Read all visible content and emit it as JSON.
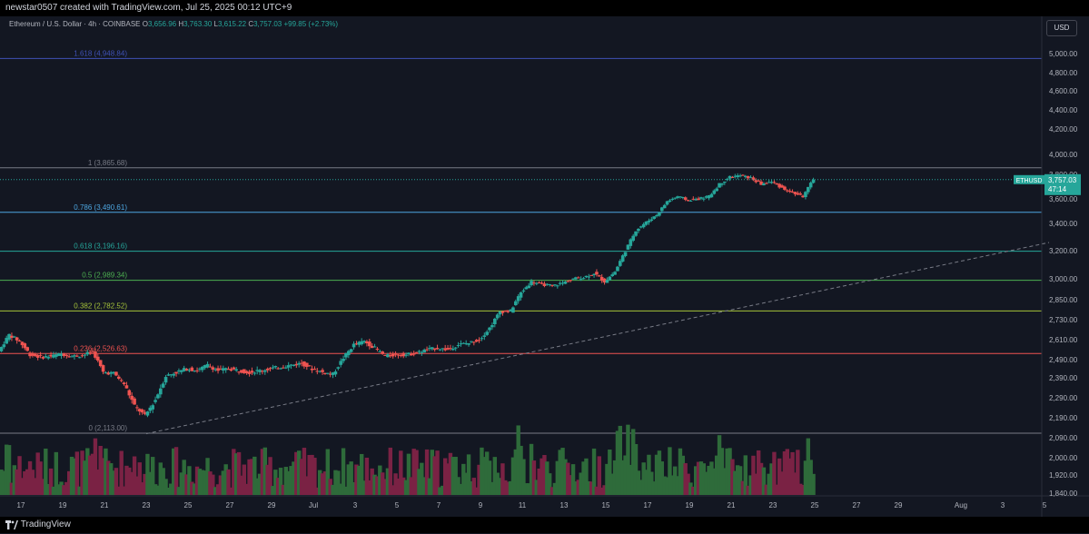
{
  "header": {
    "credit": "newstar0507 created with TradingView.com, Jul 25, 2025 00:12 UTC+9"
  },
  "legend": {
    "symbol": "Ethereum / U.S. Dollar · 4h · COINBASE",
    "o_label": "O",
    "o": "3,656.96",
    "h_label": "H",
    "h": "3,763.30",
    "l_label": "L",
    "l": "3,615.22",
    "c_label": "C",
    "c": "3,757.03",
    "change": "+99.85 (+2.73%)"
  },
  "currency_button": "USD",
  "footer": {
    "brand": "TradingView"
  },
  "colors": {
    "up": "#26a69a",
    "down": "#ef5350",
    "vol_up": "#2e6b3a",
    "vol_down": "#7a2244",
    "bg": "#131722",
    "axis_text": "#b2b5be"
  },
  "price_tag": {
    "symbol": "ETHUSD",
    "price": "3,757.03",
    "countdown": "47:14"
  },
  "chart_data": {
    "type": "candlestick",
    "title": "Ethereum / U.S. Dollar · 4h · COINBASE",
    "ylim": [
      1840,
      5140
    ],
    "y_ticks": [
      {
        "v": 5000,
        "label": "5,000.00"
      },
      {
        "v": 4800,
        "label": "4,800.00"
      },
      {
        "v": 4600,
        "label": "4,600.00"
      },
      {
        "v": 4400,
        "label": "4,400.00"
      },
      {
        "v": 4200,
        "label": "4,200.00"
      },
      {
        "v": 4000,
        "label": "4,000.00"
      },
      {
        "v": 3800,
        "label": "3,800.00"
      },
      {
        "v": 3600,
        "label": "3,600.00"
      },
      {
        "v": 3400,
        "label": "3,400.00"
      },
      {
        "v": 3200,
        "label": "3,200.00"
      },
      {
        "v": 3000,
        "label": "3,000.00"
      },
      {
        "v": 2850,
        "label": "2,850.00"
      },
      {
        "v": 2730,
        "label": "2,730.00"
      },
      {
        "v": 2610,
        "label": "2,610.00"
      },
      {
        "v": 2490,
        "label": "2,490.00"
      },
      {
        "v": 2390,
        "label": "2,390.00"
      },
      {
        "v": 2290,
        "label": "2,290.00"
      },
      {
        "v": 2190,
        "label": "2,190.00"
      },
      {
        "v": 2090,
        "label": "2,090.00"
      },
      {
        "v": 2000,
        "label": "2,000.00"
      },
      {
        "v": 1920,
        "label": "1,920.00"
      },
      {
        "v": 1840,
        "label": "1,840.00"
      }
    ],
    "x_ticks": [
      {
        "d": "Jun 17",
        "label": "17"
      },
      {
        "d": "Jun 19",
        "label": "19"
      },
      {
        "d": "Jun 21",
        "label": "21"
      },
      {
        "d": "Jun 23",
        "label": "23"
      },
      {
        "d": "Jun 25",
        "label": "25"
      },
      {
        "d": "Jun 27",
        "label": "27"
      },
      {
        "d": "Jun 29",
        "label": "29"
      },
      {
        "d": "Jul 1",
        "label": "Jul"
      },
      {
        "d": "Jul 3",
        "label": "3"
      },
      {
        "d": "Jul 5",
        "label": "5"
      },
      {
        "d": "Jul 7",
        "label": "7"
      },
      {
        "d": "Jul 9",
        "label": "9"
      },
      {
        "d": "Jul 11",
        "label": "11"
      },
      {
        "d": "Jul 13",
        "label": "13"
      },
      {
        "d": "Jul 15",
        "label": "15"
      },
      {
        "d": "Jul 17",
        "label": "17"
      },
      {
        "d": "Jul 19",
        "label": "19"
      },
      {
        "d": "Jul 21",
        "label": "21"
      },
      {
        "d": "Jul 23",
        "label": "23"
      },
      {
        "d": "Jul 25",
        "label": "25"
      },
      {
        "d": "Jul 27",
        "label": "27"
      },
      {
        "d": "Jul 29",
        "label": "29"
      },
      {
        "d": "Aug 1",
        "label": "Aug"
      },
      {
        "d": "Aug 3",
        "label": "3"
      },
      {
        "d": "Aug 5",
        "label": "5"
      }
    ],
    "fib_levels": [
      {
        "ratio": "1.618",
        "value": 4948.84,
        "label": "1.618 (4,948.84)",
        "color": "#3f51b5"
      },
      {
        "ratio": "1",
        "value": 3865.68,
        "label": "1 (3,865.68)",
        "color": "#787b86"
      },
      {
        "ratio": "0.786",
        "value": 3490.61,
        "label": "0.786 (3,490.61)",
        "color": "#4da6e0"
      },
      {
        "ratio": "0.618",
        "value": 3196.16,
        "label": "0.618 (3,196.16)",
        "color": "#26a69a"
      },
      {
        "ratio": "0.5",
        "value": 2989.34,
        "label": "0.5 (2,989.34)",
        "color": "#4caf50"
      },
      {
        "ratio": "0.382",
        "value": 2782.52,
        "label": "0.382 (2,782.52)",
        "color": "#a5c33a"
      },
      {
        "ratio": "0.236",
        "value": 2526.63,
        "label": "0.236 (2,526.63)",
        "color": "#ef5350"
      },
      {
        "ratio": "0",
        "value": 2113.0,
        "label": "0 (2,113.00)",
        "color": "#787b86"
      }
    ],
    "trendline": {
      "start": {
        "d": "Jun 23",
        "price": 2110
      },
      "end": {
        "d": "Aug 5",
        "price": 3260
      }
    },
    "current_price": 3757.03,
    "price_path": [
      [
        "Jun 16",
        2540
      ],
      [
        "Jun 16.5",
        2640
      ],
      [
        "Jun 17",
        2600
      ],
      [
        "Jun 17.5",
        2520
      ],
      [
        "Jun 18",
        2505
      ],
      [
        "Jun 18.5",
        2510
      ],
      [
        "Jun 19",
        2525
      ],
      [
        "Jun 19.5",
        2510
      ],
      [
        "Jun 20",
        2515
      ],
      [
        "Jun 20.5",
        2540
      ],
      [
        "Jun 21",
        2420
      ],
      [
        "Jun 21.5",
        2415
      ],
      [
        "Jun 22",
        2360
      ],
      [
        "Jun 22.5",
        2250
      ],
      [
        "Jun 23",
        2200
      ],
      [
        "Jun 23.5",
        2280
      ],
      [
        "Jun 24",
        2400
      ],
      [
        "Jun 24.5",
        2420
      ],
      [
        "Jun 25",
        2440
      ],
      [
        "Jun 25.5",
        2430
      ],
      [
        "Jun 26",
        2460
      ],
      [
        "Jun 26.5",
        2430
      ],
      [
        "Jun 27",
        2440
      ],
      [
        "Jun 27.5",
        2430
      ],
      [
        "Jun 28",
        2420
      ],
      [
        "Jun 28.5",
        2430
      ],
      [
        "Jun 29",
        2440
      ],
      [
        "Jun 29.5",
        2450
      ],
      [
        "Jun 30",
        2460
      ],
      [
        "Jun 30.5",
        2470
      ],
      [
        "Jul 1",
        2440
      ],
      [
        "Jul 1.5",
        2420
      ],
      [
        "Jul 2",
        2410
      ],
      [
        "Jul 2.5",
        2500
      ],
      [
        "Jul 3",
        2580
      ],
      [
        "Jul 3.5",
        2600
      ],
      [
        "Jul 4",
        2560
      ],
      [
        "Jul 4.5",
        2510
      ],
      [
        "Jul 5",
        2520
      ],
      [
        "Jul 5.5",
        2520
      ],
      [
        "Jul 6",
        2530
      ],
      [
        "Jul 6.5",
        2550
      ],
      [
        "Jul 7",
        2560
      ],
      [
        "Jul 7.5",
        2550
      ],
      [
        "Jul 8",
        2580
      ],
      [
        "Jul 8.5",
        2590
      ],
      [
        "Jul 9",
        2610
      ],
      [
        "Jul 9.5",
        2680
      ],
      [
        "Jul 10",
        2780
      ],
      [
        "Jul 10.5",
        2780
      ],
      [
        "Jul 11",
        2900
      ],
      [
        "Jul 11.5",
        2980
      ],
      [
        "Jul 12",
        2960
      ],
      [
        "Jul 12.5",
        2950
      ],
      [
        "Jul 13",
        2970
      ],
      [
        "Jul 13.5",
        3000
      ],
      [
        "Jul 14",
        3010
      ],
      [
        "Jul 14.5",
        3040
      ],
      [
        "Jul 15",
        2980
      ],
      [
        "Jul 15.5",
        3050
      ],
      [
        "Jul 16",
        3200
      ],
      [
        "Jul 16.5",
        3350
      ],
      [
        "Jul 17",
        3410
      ],
      [
        "Jul 17.5",
        3470
      ],
      [
        "Jul 18",
        3580
      ],
      [
        "Jul 18.5",
        3620
      ],
      [
        "Jul 19",
        3590
      ],
      [
        "Jul 19.5",
        3600
      ],
      [
        "Jul 20",
        3620
      ],
      [
        "Jul 20.5",
        3720
      ],
      [
        "Jul 21",
        3780
      ],
      [
        "Jul 21.5",
        3790
      ],
      [
        "Jul 22",
        3770
      ],
      [
        "Jul 22.5",
        3720
      ],
      [
        "Jul 23",
        3740
      ],
      [
        "Jul 23.5",
        3690
      ],
      [
        "Jul 24",
        3650
      ],
      [
        "Jul 24.5",
        3620
      ],
      [
        "Jul 25",
        3757
      ]
    ]
  }
}
